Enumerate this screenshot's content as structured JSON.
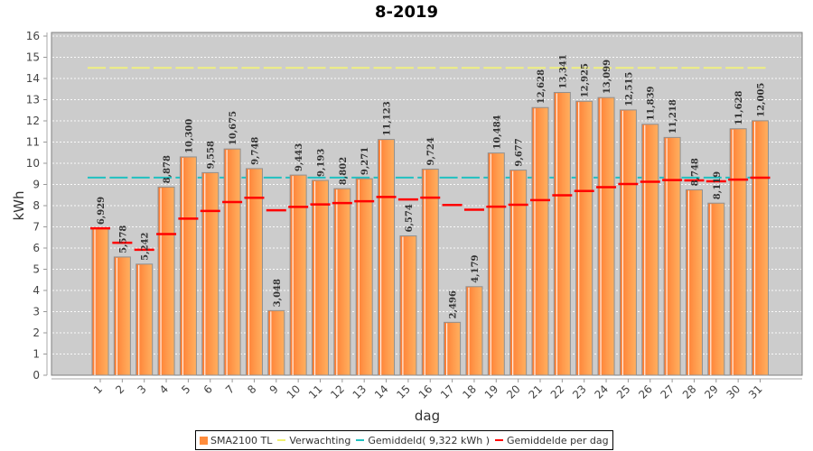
{
  "chart_data": {
    "type": "bar",
    "title": "8-2019",
    "xlabel": "dag",
    "ylabel": "kWh",
    "ylim": [
      0,
      16
    ],
    "yticks": [
      0,
      1,
      2,
      3,
      4,
      5,
      6,
      7,
      8,
      9,
      10,
      11,
      12,
      13,
      14,
      15,
      16
    ],
    "grid": true,
    "legend_position": "bottom",
    "categories": [
      "1",
      "2",
      "3",
      "4",
      "5",
      "6",
      "7",
      "8",
      "9",
      "10",
      "11",
      "12",
      "13",
      "14",
      "15",
      "16",
      "17",
      "18",
      "19",
      "20",
      "21",
      "22",
      "23",
      "24",
      "25",
      "26",
      "27",
      "28",
      "29",
      "30",
      "31"
    ],
    "series": [
      {
        "name": "SMA2100 TL",
        "kind": "bar",
        "color": "#ff8c3c",
        "values": [
          6.929,
          5.578,
          5.242,
          8.878,
          10.3,
          9.558,
          10.675,
          9.748,
          3.048,
          9.443,
          9.193,
          8.802,
          9.271,
          11.123,
          6.574,
          9.724,
          2.496,
          4.179,
          10.484,
          9.677,
          12.628,
          13.341,
          12.925,
          13.099,
          12.515,
          11.839,
          11.218,
          8.748,
          8.119,
          11.628,
          12.005
        ],
        "labels": [
          "6,929",
          "5,578",
          "5,242",
          "8,878",
          "10,300",
          "9,558",
          "10,675",
          "9,748",
          "3,048",
          "9,443",
          "9,193",
          "8,802",
          "9,271",
          "11,123",
          "6,574",
          "9,724",
          "2,496",
          "4,179",
          "10,484",
          "9,677",
          "12,628",
          "13,341",
          "12,925",
          "13,099",
          "12,515",
          "11,839",
          "11,218",
          "8,748",
          "8,119",
          "11,628",
          "12,005"
        ]
      },
      {
        "name": "Verwachting",
        "kind": "dashed-line",
        "color": "#f0f080",
        "value": 14.5
      },
      {
        "name": "Gemiddeld( 9,322 kWh )",
        "kind": "dashed-line",
        "color": "#20c0c0",
        "value": 9.322
      },
      {
        "name": "Gemiddelde per dag",
        "kind": "marker",
        "color": "#ff0000",
        "values": [
          6.93,
          6.25,
          5.92,
          6.66,
          7.39,
          7.75,
          8.17,
          8.37,
          7.78,
          7.94,
          8.06,
          8.12,
          8.21,
          8.41,
          8.29,
          8.38,
          8.03,
          7.81,
          7.95,
          8.04,
          8.26,
          8.49,
          8.69,
          8.87,
          9.02,
          9.13,
          9.21,
          9.19,
          9.15,
          9.23,
          9.32
        ]
      }
    ]
  },
  "legend": {
    "items": [
      {
        "label": "SMA2100 TL",
        "color": "#ff8c3c",
        "kind": "box"
      },
      {
        "label": "Verwachting",
        "color": "#f0f070",
        "kind": "line"
      },
      {
        "label": "Gemiddeld( 9,322 kWh )",
        "color": "#20c0c0",
        "kind": "line"
      },
      {
        "label": "Gemiddelde per dag",
        "color": "#ff0000",
        "kind": "line"
      }
    ]
  }
}
